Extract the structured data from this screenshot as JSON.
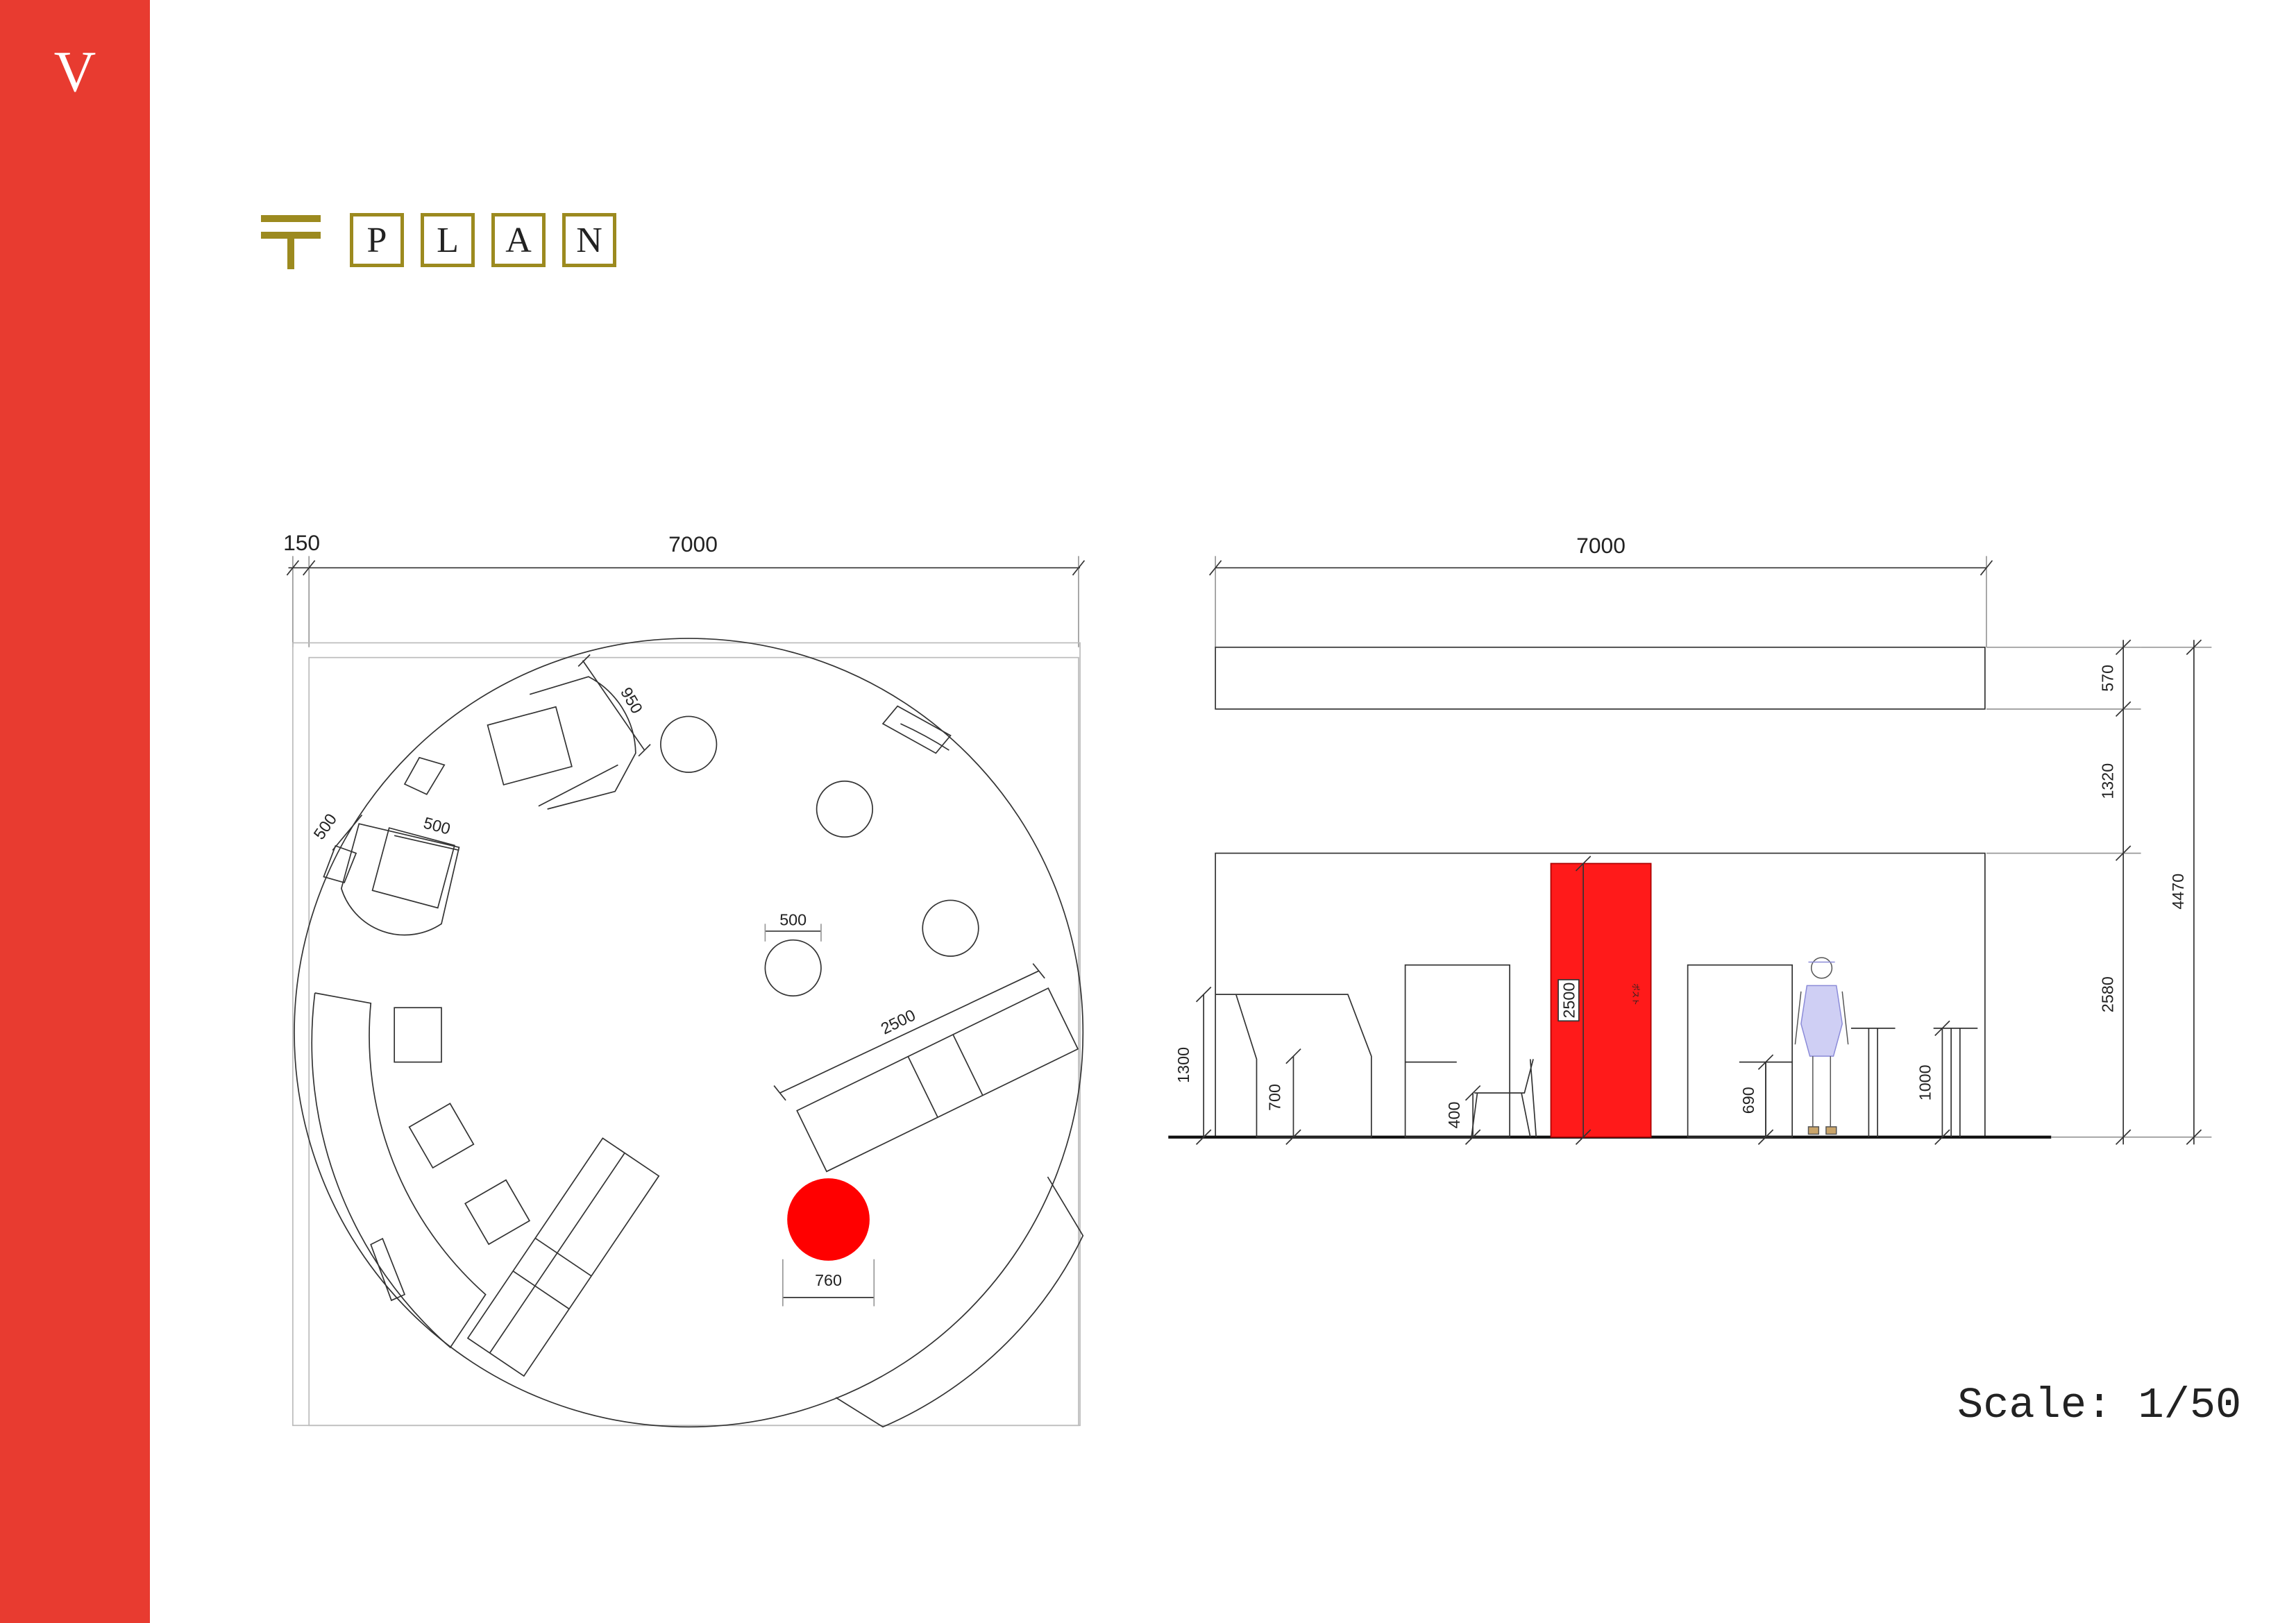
{
  "sidebar": {
    "letter": "V",
    "color": "#E83B30"
  },
  "title": {
    "icon": "postal-mark-icon",
    "letters": [
      "P",
      "L",
      "A",
      "N"
    ],
    "accent": "#9C8A1F"
  },
  "plan": {
    "dim_offset": "150",
    "dim_width": "7000",
    "dim_booth": "950",
    "dim_seat_a": "500",
    "dim_seat_b": "500",
    "dim_table": "500",
    "dim_counter": "2500",
    "dim_post": "760",
    "post_color": "#FF0000"
  },
  "elevation": {
    "dim_width": "7000",
    "dim_header": "570",
    "dim_gap": "1320",
    "dim_wall": "2580",
    "dim_total": "4470",
    "dim_counter": "1300",
    "dim_bench": "700",
    "dim_chair": "400",
    "dim_post_height": "2500",
    "post_text": "ポスト",
    "dim_stand_table": "690",
    "dim_high_table": "1000",
    "post_color": "#FF1A1A"
  },
  "scale": {
    "label": "Scale: 1/50"
  }
}
